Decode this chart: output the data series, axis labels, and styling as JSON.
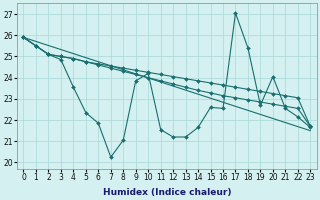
{
  "xlabel": "Humidex (Indice chaleur)",
  "ylabel": "",
  "xlim": [
    -0.5,
    23.5
  ],
  "ylim": [
    19.7,
    27.5
  ],
  "yticks": [
    20,
    21,
    22,
    23,
    24,
    25,
    26,
    27
  ],
  "xticks": [
    0,
    1,
    2,
    3,
    4,
    5,
    6,
    7,
    8,
    9,
    10,
    11,
    12,
    13,
    14,
    15,
    16,
    17,
    18,
    19,
    20,
    21,
    22,
    23
  ],
  "bg_color": "#d4f0f0",
  "grid_color": "#a8d8d8",
  "line_color": "#1a6e6e",
  "lines": [
    {
      "x": [
        0,
        1,
        2,
        3,
        4,
        5,
        6,
        7,
        8,
        9,
        10,
        11,
        12,
        13,
        14,
        15,
        16,
        17,
        18,
        19,
        20,
        21,
        22,
        23
      ],
      "y": [
        25.9,
        25.5,
        25.1,
        25.0,
        24.9,
        24.75,
        24.65,
        24.55,
        24.45,
        24.35,
        24.25,
        24.15,
        24.05,
        23.95,
        23.85,
        23.75,
        23.65,
        23.55,
        23.45,
        23.35,
        23.25,
        23.15,
        23.05,
        21.7
      ],
      "marker": "D",
      "markersize": 2.0,
      "linewidth": 0.8
    },
    {
      "x": [
        0,
        1,
        2,
        3,
        4,
        5,
        6,
        7,
        8,
        9,
        10,
        11,
        12,
        13,
        14,
        15,
        16,
        17,
        18,
        19,
        20,
        21,
        22,
        23
      ],
      "y": [
        25.9,
        25.5,
        25.1,
        25.0,
        24.9,
        24.75,
        24.6,
        24.45,
        24.3,
        24.15,
        24.0,
        23.85,
        23.7,
        23.55,
        23.4,
        23.28,
        23.15,
        23.05,
        22.95,
        22.85,
        22.75,
        22.65,
        22.55,
        21.7
      ],
      "marker": "D",
      "markersize": 2.0,
      "linewidth": 0.8
    },
    {
      "x": [
        0,
        23
      ],
      "y": [
        25.9,
        21.5
      ],
      "marker": null,
      "markersize": 0,
      "linewidth": 0.8
    },
    {
      "x": [
        0,
        1,
        2,
        3,
        4,
        5,
        6,
        7,
        8,
        9,
        10,
        11,
        12,
        13,
        14,
        15,
        16,
        17,
        18,
        19,
        20,
        21,
        22,
        23
      ],
      "y": [
        25.9,
        25.5,
        25.1,
        24.85,
        23.55,
        22.35,
        21.85,
        20.25,
        21.05,
        23.85,
        24.2,
        21.55,
        21.2,
        21.2,
        21.65,
        22.6,
        22.55,
        27.05,
        25.4,
        22.7,
        24.05,
        22.55,
        22.15,
        21.65
      ],
      "marker": "D",
      "markersize": 2.0,
      "linewidth": 0.8
    }
  ],
  "tick_fontsize": 5.5,
  "label_fontsize": 6.5
}
